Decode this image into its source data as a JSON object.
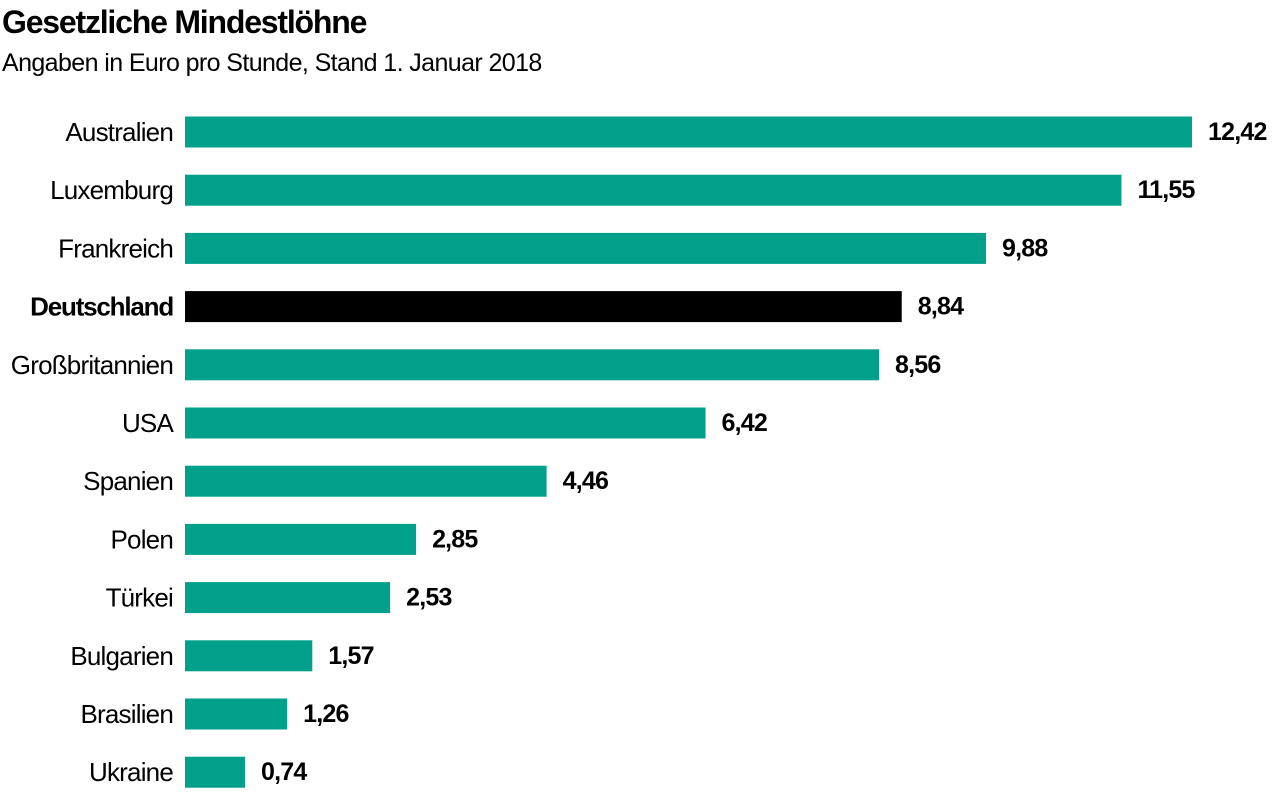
{
  "chart_data": {
    "type": "bar",
    "orientation": "horizontal",
    "title": "Gesetzliche Mindestlöhne",
    "subtitle": "Angaben in Euro pro Stunde, Stand 1. Januar 2018",
    "categories": [
      "Australien",
      "Luxemburg",
      "Frankreich",
      "Deutschland",
      "Großbritannien",
      "USA",
      "Spanien",
      "Polen",
      "Türkei",
      "Bulgarien",
      "Brasilien",
      "Ukraine"
    ],
    "values": [
      12.42,
      11.55,
      9.88,
      8.84,
      8.56,
      6.42,
      4.46,
      2.85,
      2.53,
      1.57,
      1.26,
      0.74
    ],
    "value_labels": [
      "12,42",
      "11,55",
      "9,88",
      "8,84",
      "8,56",
      "6,42",
      "4,46",
      "2,85",
      "2,53",
      "1,57",
      "1,26",
      "0,74"
    ],
    "highlight": "Deutschland",
    "xlim": [
      0,
      12.42
    ],
    "grid": false,
    "legend": "none",
    "colors": {
      "bar": "#00a08a",
      "highlight_bar": "#000000",
      "text": "#000000"
    }
  }
}
